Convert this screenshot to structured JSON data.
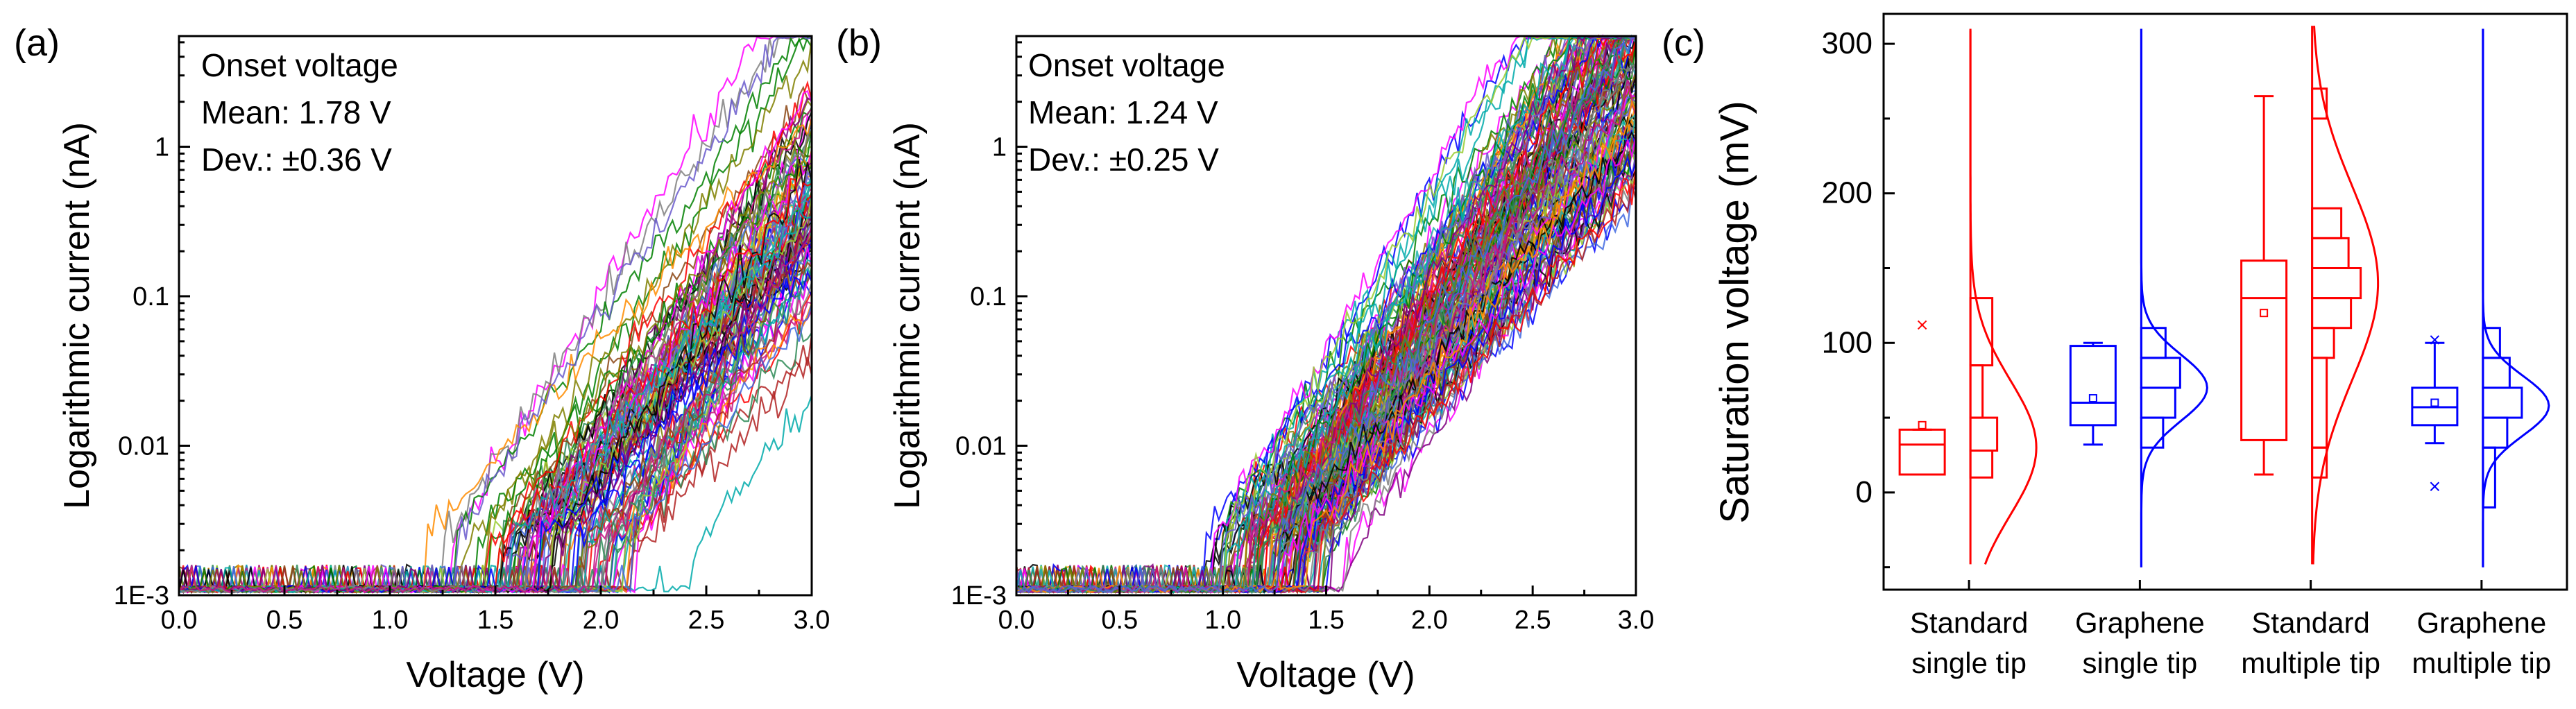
{
  "chart_data": [
    {
      "panel": "(a)",
      "type": "line",
      "xlabel": "Voltage (V)",
      "ylabel": "Logarithmic current (nA)",
      "xlim": [
        0.0,
        3.0
      ],
      "ylim": [
        0.001,
        5.5
      ],
      "yscale": "log",
      "xticks": [
        "0.0",
        "0.5",
        "1.0",
        "1.5",
        "2.0",
        "2.5",
        "3.0"
      ],
      "yticks": [
        "1E-3",
        "0.01",
        "0.1",
        "1"
      ],
      "annotation": [
        "Onset voltage",
        "Mean: 1.78 V",
        "Dev.: ±0.36 V"
      ],
      "onset_mean_v": 1.78,
      "onset_dev_v": 0.36,
      "trace_count": 100
    },
    {
      "panel": "(b)",
      "type": "line",
      "xlabel": "Voltage (V)",
      "ylabel": "Logarithmic current (nA)",
      "xlim": [
        0.0,
        3.0
      ],
      "ylim": [
        0.001,
        5.5
      ],
      "yscale": "log",
      "xticks": [
        "0.0",
        "0.5",
        "1.0",
        "1.5",
        "2.0",
        "2.5",
        "3.0"
      ],
      "yticks": [
        "1E-3",
        "0.01",
        "0.1",
        "1"
      ],
      "annotation": [
        "Onset voltage",
        "Mean: 1.24 V",
        "Dev.: ±0.25 V"
      ],
      "onset_mean_v": 1.24,
      "onset_dev_v": 0.25,
      "trace_count": 140
    },
    {
      "panel": "(c)",
      "type": "box",
      "ylabel": "Saturation voltage (mV)",
      "ylim": [
        -65,
        320
      ],
      "yticks": [
        0,
        100,
        200,
        300
      ],
      "categories": [
        {
          "line1": "Standard",
          "line2": "single tip",
          "color": "#ff0000",
          "whisker_low": 12,
          "q1": 12,
          "median": 32,
          "q3": 42,
          "whisker_high": 42,
          "mean": 45,
          "outliers": [
            112
          ],
          "hist_bins": [
            [
              10,
              28,
              0.45
            ],
            [
              28,
              50,
              0.55
            ],
            [
              50,
              85,
              0.25
            ],
            [
              85,
              130,
              0.45
            ]
          ],
          "dist_mean": 30,
          "dist_sd": 45,
          "dist_range": [
            -48,
            310
          ]
        },
        {
          "line1": "Graphene",
          "line2": "single tip",
          "color": "#0000ff",
          "whisker_low": 32,
          "q1": 45,
          "median": 60,
          "q3": 98,
          "whisker_high": 100,
          "mean": 63,
          "outliers": [],
          "hist_bins": [
            [
              30,
              50,
              0.45
            ],
            [
              50,
              70,
              0.7
            ],
            [
              70,
              90,
              0.8
            ],
            [
              90,
              110,
              0.5
            ]
          ],
          "dist_mean": 70,
          "dist_sd": 22,
          "dist_range": [
            -50,
            310
          ]
        },
        {
          "line1": "Standard",
          "line2": "multiple tip",
          "color": "#ff0000",
          "whisker_low": 12,
          "q1": 35,
          "median": 130,
          "q3": 155,
          "whisker_high": 265,
          "mean": 120,
          "outliers": [],
          "hist_bins": [
            [
              10,
              30,
              0.3
            ],
            [
              30,
              90,
              0.3
            ],
            [
              90,
              110,
              0.45
            ],
            [
              110,
              130,
              0.8
            ],
            [
              130,
              150,
              1.0
            ],
            [
              150,
              170,
              0.75
            ],
            [
              170,
              190,
              0.6
            ],
            [
              250,
              270,
              0.3
            ]
          ],
          "dist_mean": 140,
          "dist_sd": 65,
          "dist_range": [
            -48,
            312
          ]
        },
        {
          "line1": "Graphene",
          "line2": "multiple tip",
          "color": "#0000ff",
          "whisker_low": 33,
          "q1": 45,
          "median": 57,
          "q3": 70,
          "whisker_high": 100,
          "mean": 60,
          "outliers": [
            102,
            4
          ],
          "hist_bins": [
            [
              -10,
              30,
              0.25
            ],
            [
              30,
              50,
              0.5
            ],
            [
              50,
              70,
              0.8
            ],
            [
              70,
              90,
              0.55
            ],
            [
              90,
              110,
              0.35
            ]
          ],
          "dist_mean": 58,
          "dist_sd": 20,
          "dist_range": [
            -50,
            310
          ]
        }
      ]
    }
  ]
}
